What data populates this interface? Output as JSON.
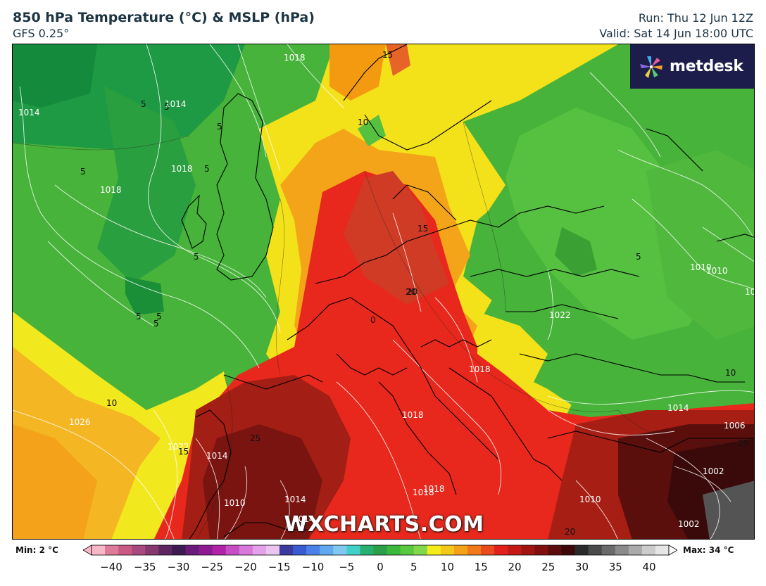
{
  "header": {
    "title": "850 hPa Temperature (°C) & MSLP (hPa)",
    "model": "GFS 0.25°",
    "run": "Run: Thu 12 Jun 12Z",
    "valid": "Valid: Sat 14 Jun 18:00 UTC"
  },
  "logo": {
    "text": "metdesk",
    "icon": "pinwheel-icon"
  },
  "watermark": "WXCHARTS.COM",
  "colorbar": {
    "min_label": "Min: 2 °C",
    "max_label": "Max: 34 °C",
    "range": [
      -40,
      40
    ],
    "ticks": [
      "−40",
      "−35",
      "−30",
      "−25",
      "−20",
      "−15",
      "−10",
      "−5",
      "0",
      "5",
      "10",
      "15",
      "20",
      "25",
      "30",
      "35",
      "40"
    ]
  },
  "isobar_labels": [
    "1014",
    "1018",
    "1014",
    "1018",
    "1018",
    "1026",
    "1022",
    "1014",
    "1010",
    "1014",
    "1018",
    "1018",
    "1018",
    "1022",
    "1014",
    "1010",
    "1010",
    "1002",
    "1006",
    "1002",
    "1010",
    "1014",
    "1018",
    "10"
  ],
  "temp_labels": [
    "5",
    "5",
    "5",
    "5",
    "5",
    "5",
    "5",
    "5",
    "5",
    "10",
    "15",
    "10",
    "15",
    "20",
    "15",
    "25",
    "10",
    "25",
    "20",
    "0",
    "20",
    "5"
  ],
  "colors": {
    "cold_green": "#1a9a4a",
    "green": "#47b33a",
    "light_green": "#6bd44a",
    "yellow": "#f3e21a",
    "orange": "#f39a10",
    "red": "#e8281c",
    "dark_red": "#8e1e12",
    "maroon": "#4a0d0d",
    "logo_bg": "#1c1d4a"
  }
}
